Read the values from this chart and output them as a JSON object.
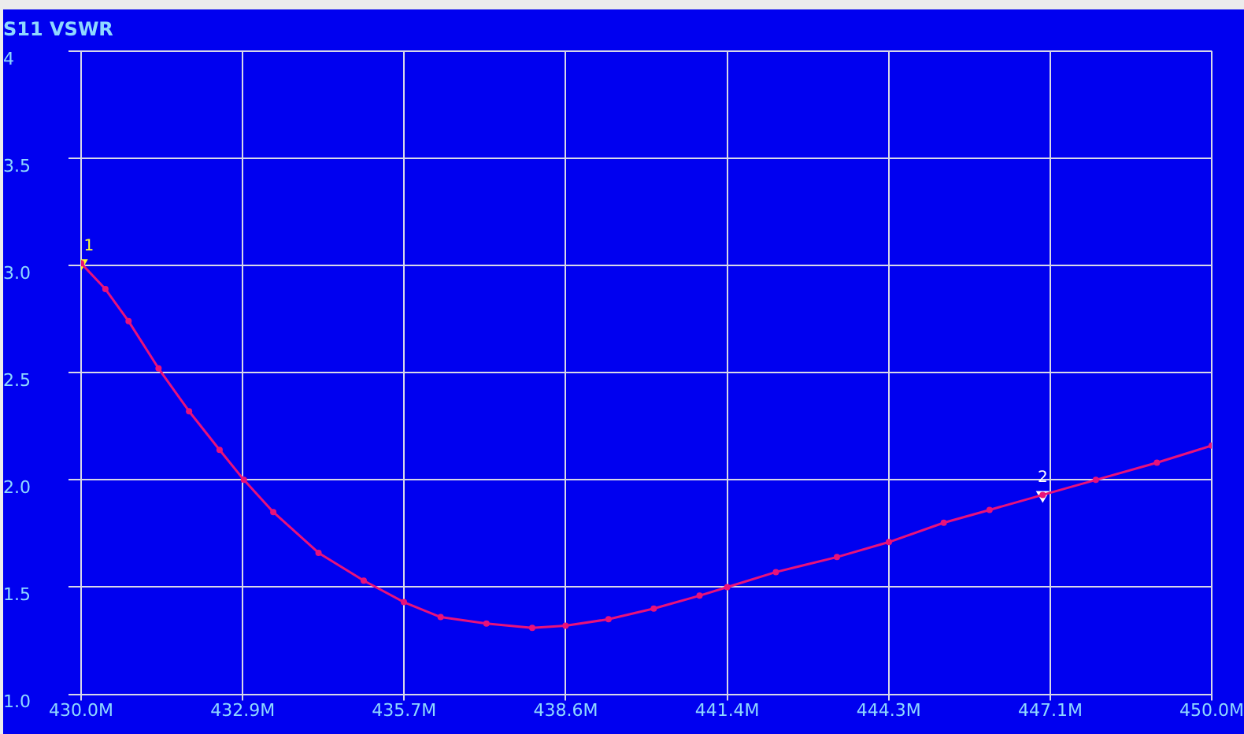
{
  "chart_data": {
    "type": "line",
    "title": "S11 VSWR",
    "x": [
      430.0,
      430.43,
      430.84,
      431.37,
      431.91,
      432.45,
      432.88,
      433.4,
      434.2,
      435.0,
      435.71,
      436.36,
      437.17,
      437.98,
      438.57,
      439.33,
      440.13,
      440.94,
      441.43,
      442.29,
      443.37,
      444.29,
      445.26,
      446.07,
      447.01,
      447.95,
      449.03,
      450.0
    ],
    "series": [
      {
        "color": "#e8127a",
        "values": [
          3.01,
          2.89,
          2.74,
          2.52,
          2.32,
          2.14,
          2.0,
          1.85,
          1.66,
          1.53,
          1.43,
          1.36,
          1.33,
          1.31,
          1.32,
          1.35,
          1.4,
          1.46,
          1.5,
          1.57,
          1.64,
          1.71,
          1.8,
          1.86,
          1.93,
          2.0,
          2.08,
          2.16
        ]
      },
      {
        "type": "scatter",
        "marker": "triangle",
        "colors": [
          "#ffff30",
          "#ffffff"
        ],
        "x": [
          430.0,
          447.01
        ],
        "values": [
          3.01,
          1.93
        ]
      }
    ],
    "xlim": [
      430,
      450
    ],
    "xticks": [
      {
        "value": 430,
        "label": "430.0M"
      },
      {
        "value": 432.857,
        "label": "432.9M"
      },
      {
        "value": 435.714,
        "label": "435.7M"
      },
      {
        "value": 438.571,
        "label": "438.6M"
      },
      {
        "value": 441.429,
        "label": "441.4M"
      },
      {
        "value": 444.286,
        "label": "444.3M"
      },
      {
        "value": 447.143,
        "label": "447.1M"
      },
      {
        "value": 450,
        "label": "450.0M"
      }
    ],
    "ylim": [
      1,
      4
    ],
    "yticks": [
      {
        "value": 1,
        "label": "1.0"
      },
      {
        "value": 1.5,
        "label": "1.5"
      },
      {
        "value": 2,
        "label": "2.0"
      },
      {
        "value": 2.5,
        "label": "2.5"
      },
      {
        "value": 3,
        "label": "3.0"
      },
      {
        "value": 3.5,
        "label": "3.5"
      },
      4
    ],
    "annotations": [
      {
        "text": "1",
        "x": 430.0,
        "y": 3.01
      },
      {
        "text": "2",
        "x": 447.01,
        "y": 1.93
      }
    ],
    "grid": true,
    "legend": false,
    "marker": "circle",
    "line_style": "solid"
  }
}
